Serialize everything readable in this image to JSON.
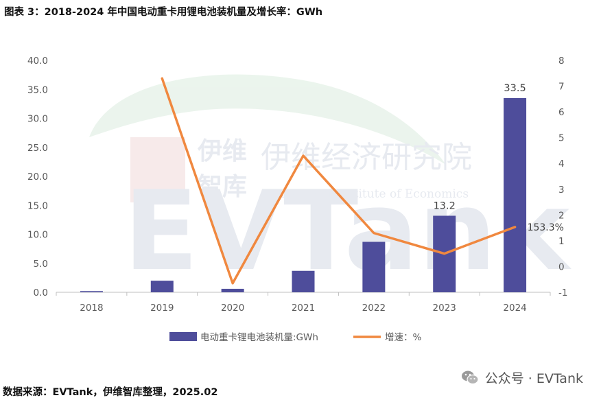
{
  "title": "图表 3：2018-2024 年中国电动重卡用锂电池装机量及增长率：GWh",
  "source": "数据来源：EVTank，伊维智库整理，2025.02",
  "brand": {
    "icon": "wechat-icon",
    "text": "公众号 · EVTank"
  },
  "watermark": {
    "logo_text": "EVTank",
    "cn_name_1": "伊维",
    "cn_name_2": "智库",
    "institute_cn": "伊维经济研究院",
    "institute_en": "China YiWei Institute of Economics"
  },
  "colors": {
    "bar": "#4e4d9b",
    "line": "#f0883f",
    "axis": "#bfbfbf",
    "text": "#595959"
  },
  "chart_data": {
    "type": "bar",
    "categories": [
      "2018",
      "2019",
      "2020",
      "2021",
      "2022",
      "2023",
      "2024"
    ],
    "series": [
      {
        "name": "电动重卡锂电池装机量:GWh",
        "type": "bar",
        "axis": "left",
        "values": [
          0.2,
          2.0,
          0.6,
          3.7,
          8.7,
          13.2,
          33.5
        ],
        "data_labels": [
          null,
          null,
          null,
          null,
          null,
          "13.2",
          "33.5"
        ]
      },
      {
        "name": "增速：%",
        "type": "line",
        "axis": "right",
        "values": [
          null,
          7.3,
          -0.65,
          4.3,
          1.3,
          0.5,
          1.533
        ],
        "data_labels": [
          null,
          null,
          null,
          null,
          null,
          null,
          "153.3%"
        ]
      }
    ],
    "y_left": {
      "ylim": [
        0,
        40
      ],
      "ticks": [
        "0.0",
        "5.0",
        "10.0",
        "15.0",
        "20.0",
        "25.0",
        "30.0",
        "35.0",
        "40.0"
      ]
    },
    "y_right": {
      "ylim": [
        -1,
        8
      ],
      "ticks": [
        "-1",
        "0",
        "1",
        "2",
        "3",
        "4",
        "5",
        "6",
        "7",
        "8"
      ]
    },
    "legend_position": "bottom",
    "grid": false
  }
}
